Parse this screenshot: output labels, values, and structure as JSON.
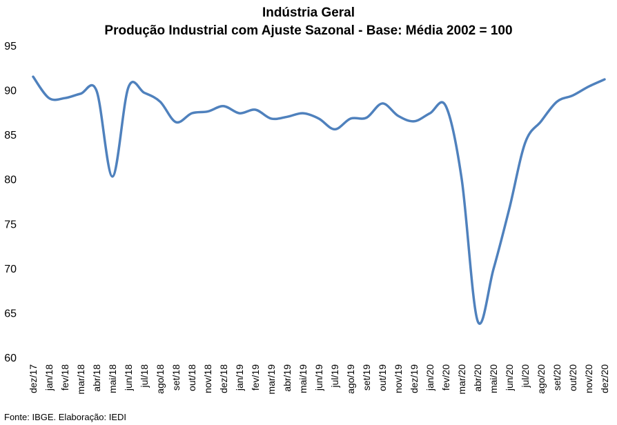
{
  "chart_data": {
    "type": "line",
    "title": "Indústria Geral",
    "subtitle": "Produção Industrial com Ajuste Sazonal - Base: Média 2002 = 100",
    "source": "Fonte: IBGE. Elaboração: IEDI",
    "xlabel": "",
    "ylabel": "",
    "ylim": [
      60,
      95
    ],
    "yticks": [
      60,
      65,
      70,
      75,
      80,
      85,
      90,
      95
    ],
    "grid": false,
    "legend": "none",
    "line_color": "#4F81BD",
    "categories": [
      "dez/17",
      "jan/18",
      "fev/18",
      "mar/18",
      "abr/18",
      "mai/18",
      "jun/18",
      "jul/18",
      "ago/18",
      "set/18",
      "out/18",
      "nov/18",
      "dez/18",
      "jan/19",
      "fev/19",
      "mar/19",
      "abr/19",
      "mai/19",
      "jun/19",
      "jul/19",
      "ago/19",
      "set/19",
      "out/19",
      "nov/19",
      "dez/19",
      "jan/20",
      "fev/20",
      "mar/20",
      "abr/20",
      "mai/20",
      "jun/20",
      "jul/20",
      "ago/20",
      "set/20",
      "out/20",
      "nov/20",
      "dez/20"
    ],
    "series": [
      {
        "values": [
          91.5,
          89.1,
          89.1,
          89.6,
          89.9,
          80.3,
          90.3,
          89.7,
          88.7,
          86.4,
          87.4,
          87.6,
          88.2,
          87.4,
          87.8,
          86.8,
          87.0,
          87.4,
          86.8,
          85.6,
          86.8,
          86.9,
          88.5,
          87.1,
          86.5,
          87.4,
          88.2,
          80.0,
          64.1,
          69.9,
          76.7,
          84.1,
          86.5,
          88.7,
          89.4,
          90.4,
          91.2
        ]
      }
    ]
  }
}
